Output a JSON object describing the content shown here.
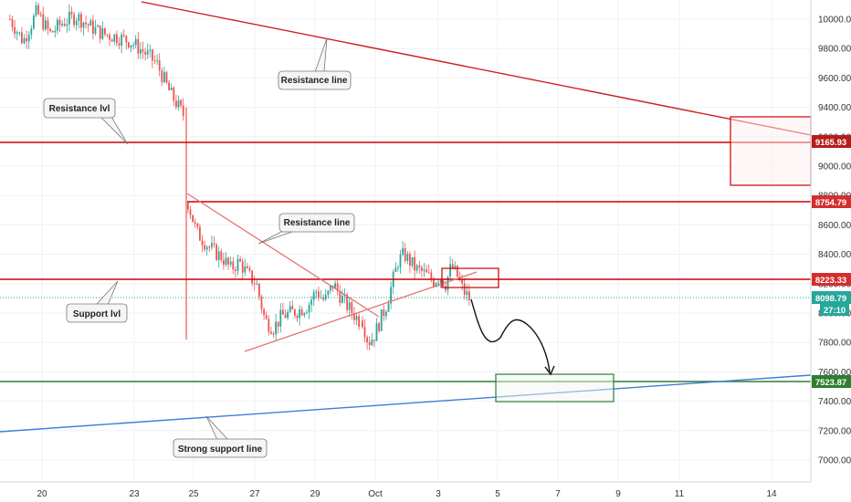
{
  "chart_data": {
    "type": "candlestick",
    "title": "",
    "xlabel": "",
    "ylabel": "",
    "x_ticks": [
      "20",
      "23",
      "25",
      "27",
      "29",
      "Oct",
      "3",
      "5",
      "7",
      "9",
      "11",
      "14"
    ],
    "y_ticks": [
      10000.0,
      9800.0,
      9600.0,
      9400.0,
      9200.0,
      9000.0,
      8800.0,
      8600.0,
      8400.0,
      8200.0,
      8000.0,
      7800.0,
      7600.0,
      7400.0,
      7200.0,
      7000.0
    ],
    "ylim": [
      6850,
      10100
    ],
    "price_labels": [
      {
        "value": "9165.93",
        "color": "#b71c1c"
      },
      {
        "value": "8754.79",
        "color": "#d32f2f"
      },
      {
        "value": "8223.33",
        "color": "#d32f2f"
      },
      {
        "value": "8098.79",
        "color": "#26a69a"
      },
      {
        "value": "27:10",
        "color": "#26a69a"
      },
      {
        "value": "7523.87",
        "color": "#2e7d32"
      }
    ],
    "horizontal_levels": [
      {
        "value": 9165.93,
        "color": "#cc0000"
      },
      {
        "value": 8754.79,
        "color": "#cc0000"
      },
      {
        "value": 8223.33,
        "color": "#cc0000"
      },
      {
        "value": 7523.87,
        "color": "#2e7d32"
      },
      {
        "value": 8098.79,
        "color": "#26a69a"
      }
    ],
    "annotations": [
      {
        "text": "Resistance line",
        "ref": "upper-resistance"
      },
      {
        "text": "Resistance lvl",
        "ref": "resistance-level"
      },
      {
        "text": "Resistance line",
        "ref": "triangle-resistance"
      },
      {
        "text": "Support lvl",
        "ref": "support-level"
      },
      {
        "text": "Strong support line",
        "ref": "strong-support"
      }
    ],
    "price_path": [
      [
        10000,
        9850,
        10050,
        9900,
        9980,
        10020,
        9950,
        9900,
        9880,
        9850,
        9780,
        9700,
        9500,
        9350
      ],
      [
        8750,
        8550,
        8480,
        8420,
        8380,
        8300,
        8350,
        8260,
        8200,
        7950,
        7900,
        7980,
        8000,
        8020,
        8050,
        8150,
        8080,
        8200,
        8100,
        8020,
        7950
      ],
      [
        7950,
        7800,
        7850,
        7950,
        8050,
        8200,
        8350,
        8400,
        8350,
        8300,
        8280,
        8250,
        8220,
        8250,
        8200,
        8320,
        8250,
        8150,
        8100
      ]
    ],
    "projection": {
      "from": 8100,
      "low": 7800,
      "high": 7950,
      "target": 7560
    },
    "colors": {
      "up": "#26a69a",
      "down": "#ef5350",
      "resistance": "#cc0000",
      "support": "#2e7d32",
      "trend": "#3d7dd8"
    }
  }
}
